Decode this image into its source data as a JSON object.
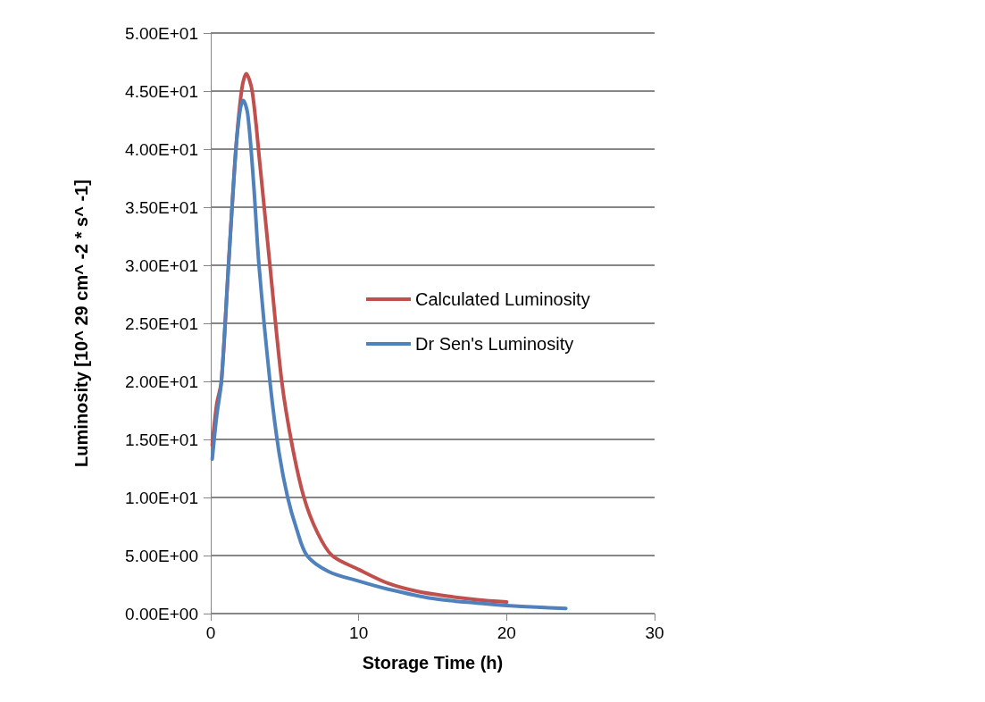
{
  "chart_data": {
    "type": "line",
    "xlabel": "Storage Time (h)",
    "ylabel": "Luminosity [10^ 29 cm^ -2 * s^ -1]",
    "xlim": [
      0,
      30
    ],
    "xticks": [
      0,
      10,
      20,
      30
    ],
    "ylim": [
      0,
      50
    ],
    "yticks": [
      {
        "value": 0,
        "label": "0.00E+00"
      },
      {
        "value": 5,
        "label": "5.00E+00"
      },
      {
        "value": 10,
        "label": "1.00E+01"
      },
      {
        "value": 15,
        "label": "1.50E+01"
      },
      {
        "value": 20,
        "label": "2.00E+01"
      },
      {
        "value": 25,
        "label": "2.50E+01"
      },
      {
        "value": 30,
        "label": "3.00E+01"
      },
      {
        "value": 35,
        "label": "3.50E+01"
      },
      {
        "value": 40,
        "label": "4.00E+01"
      },
      {
        "value": 45,
        "label": "4.50E+01"
      },
      {
        "value": 50,
        "label": "5.00E+01"
      }
    ],
    "grid": "y",
    "legend": "right",
    "marker": "none",
    "line_style": "solid",
    "series": [
      {
        "name": "Calculated Luminosity",
        "color": "#c0504d",
        "x": [
          0.1,
          0.4,
          0.72,
          1.2,
          1.7,
          2.1,
          2.4,
          2.8,
          3.3,
          4.0,
          4.8,
          5.5,
          6.3,
          7.2,
          8.2,
          10,
          12,
          14,
          16,
          18,
          20
        ],
        "values": [
          14.5,
          18,
          20,
          30,
          40,
          45.2,
          46.5,
          45,
          39,
          30,
          20,
          14.5,
          10,
          7,
          5,
          3.8,
          2.6,
          1.9,
          1.5,
          1.2,
          1.0
        ]
      },
      {
        "name": "Dr Sen's Luminosity",
        "color": "#4f81bd",
        "x": [
          0.1,
          0.4,
          0.72,
          1.2,
          1.7,
          2.0,
          2.2,
          2.5,
          2.9,
          3.26,
          4.0,
          4.6,
          5.2,
          5.8,
          6.5,
          8,
          10,
          12,
          15,
          18,
          20,
          22,
          24
        ],
        "values": [
          13.3,
          17,
          20,
          30,
          40,
          43.5,
          44.2,
          43,
          37,
          30,
          20,
          14,
          10,
          7.3,
          5,
          3.6,
          2.8,
          2.1,
          1.3,
          0.9,
          0.7,
          0.55,
          0.45
        ]
      }
    ]
  }
}
